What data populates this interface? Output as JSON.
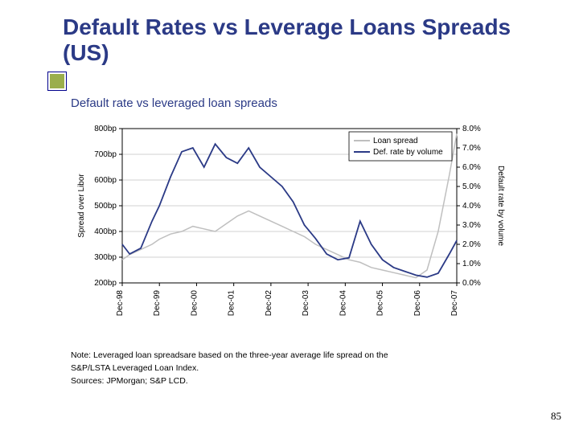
{
  "title": "Default Rates vs Leverage Loans Spreads (US)",
  "title_color": "#2B3A86",
  "title_fontsize": 28,
  "bullet_color": "#9AAE4C",
  "subtitle": "Default rate vs leveraged loan spreads",
  "subtitle_color": "#2B3A86",
  "subtitle_fontsize": 15,
  "chart": {
    "type": "line",
    "background_color": "#ffffff",
    "plot_border_color": "#000000",
    "grid_color": "#d0d0d0",
    "grid_on": true,
    "legend": {
      "position": "top-right-inside",
      "items": [
        {
          "label": "Loan spread",
          "color": "#bfbfbf"
        },
        {
          "label": "Def. rate by volume",
          "color": "#2B3A86"
        }
      ],
      "fontsize": 10,
      "border_color": "#000000"
    },
    "x": {
      "labels": [
        "Dec-98",
        "Dec-99",
        "Dec-00",
        "Dec-01",
        "Dec-02",
        "Dec-03",
        "Dec-04",
        "Dec-05",
        "Dec-06",
        "Dec-07"
      ],
      "rotation": -90,
      "fontsize": 10,
      "tick_color": "#000000"
    },
    "y_left": {
      "label": "Spread over Libor",
      "min": 200,
      "max": 800,
      "step": 100,
      "ticks": [
        "200bp",
        "300bp",
        "400bp",
        "500bp",
        "600bp",
        "700bp",
        "800bp"
      ],
      "fontsize": 10,
      "label_fontsize": 10
    },
    "y_right": {
      "label": "Default rate by volume",
      "min": 0.0,
      "max": 8.0,
      "step": 1.0,
      "ticks": [
        "0.0%",
        "1.0%",
        "2.0%",
        "3.0%",
        "4.0%",
        "5.0%",
        "6.0%",
        "7.0%",
        "8.0%"
      ],
      "fontsize": 10,
      "label_fontsize": 10
    },
    "series": [
      {
        "name": "Loan spread",
        "axis": "left",
        "color": "#bfbfbf",
        "line_width": 1.5,
        "x": [
          0,
          0.2,
          0.5,
          0.8,
          1.0,
          1.3,
          1.6,
          1.9,
          2.2,
          2.5,
          2.8,
          3.1,
          3.4,
          3.7,
          4.0,
          4.3,
          4.6,
          4.9,
          5.2,
          5.5,
          5.8,
          6.1,
          6.4,
          6.7,
          7.0,
          7.3,
          7.6,
          7.9,
          8.2,
          8.5,
          8.8,
          9.0
        ],
        "y": [
          290,
          310,
          330,
          350,
          370,
          390,
          400,
          420,
          410,
          400,
          430,
          460,
          480,
          460,
          440,
          420,
          400,
          380,
          350,
          330,
          310,
          290,
          280,
          260,
          250,
          240,
          230,
          220,
          250,
          400,
          620,
          780
        ]
      },
      {
        "name": "Def. rate by volume",
        "axis": "right",
        "color": "#2B3A86",
        "line_width": 1.8,
        "x": [
          0,
          0.2,
          0.5,
          0.8,
          1.0,
          1.3,
          1.6,
          1.9,
          2.2,
          2.5,
          2.8,
          3.1,
          3.4,
          3.7,
          4.0,
          4.3,
          4.6,
          4.9,
          5.2,
          5.5,
          5.8,
          6.1,
          6.4,
          6.7,
          7.0,
          7.3,
          7.6,
          7.9,
          8.2,
          8.5,
          8.8,
          9.0
        ],
        "y": [
          2.0,
          1.5,
          1.8,
          3.2,
          4.0,
          5.5,
          6.8,
          7.0,
          6.0,
          7.2,
          6.5,
          6.2,
          7.0,
          6.0,
          5.5,
          5.0,
          4.2,
          3.0,
          2.3,
          1.5,
          1.2,
          1.3,
          3.2,
          2.0,
          1.2,
          0.8,
          0.6,
          0.4,
          0.3,
          0.5,
          1.5,
          2.2
        ]
      }
    ]
  },
  "note_lines": [
    "Note: Leveraged loan spreadsare based on the three-year average life spread on the",
    "S&P/LSTA Leveraged Loan Index.",
    "Sources: JPMorgan; S&P LCD."
  ],
  "note_fontsize": 10.5,
  "page_number": "85"
}
